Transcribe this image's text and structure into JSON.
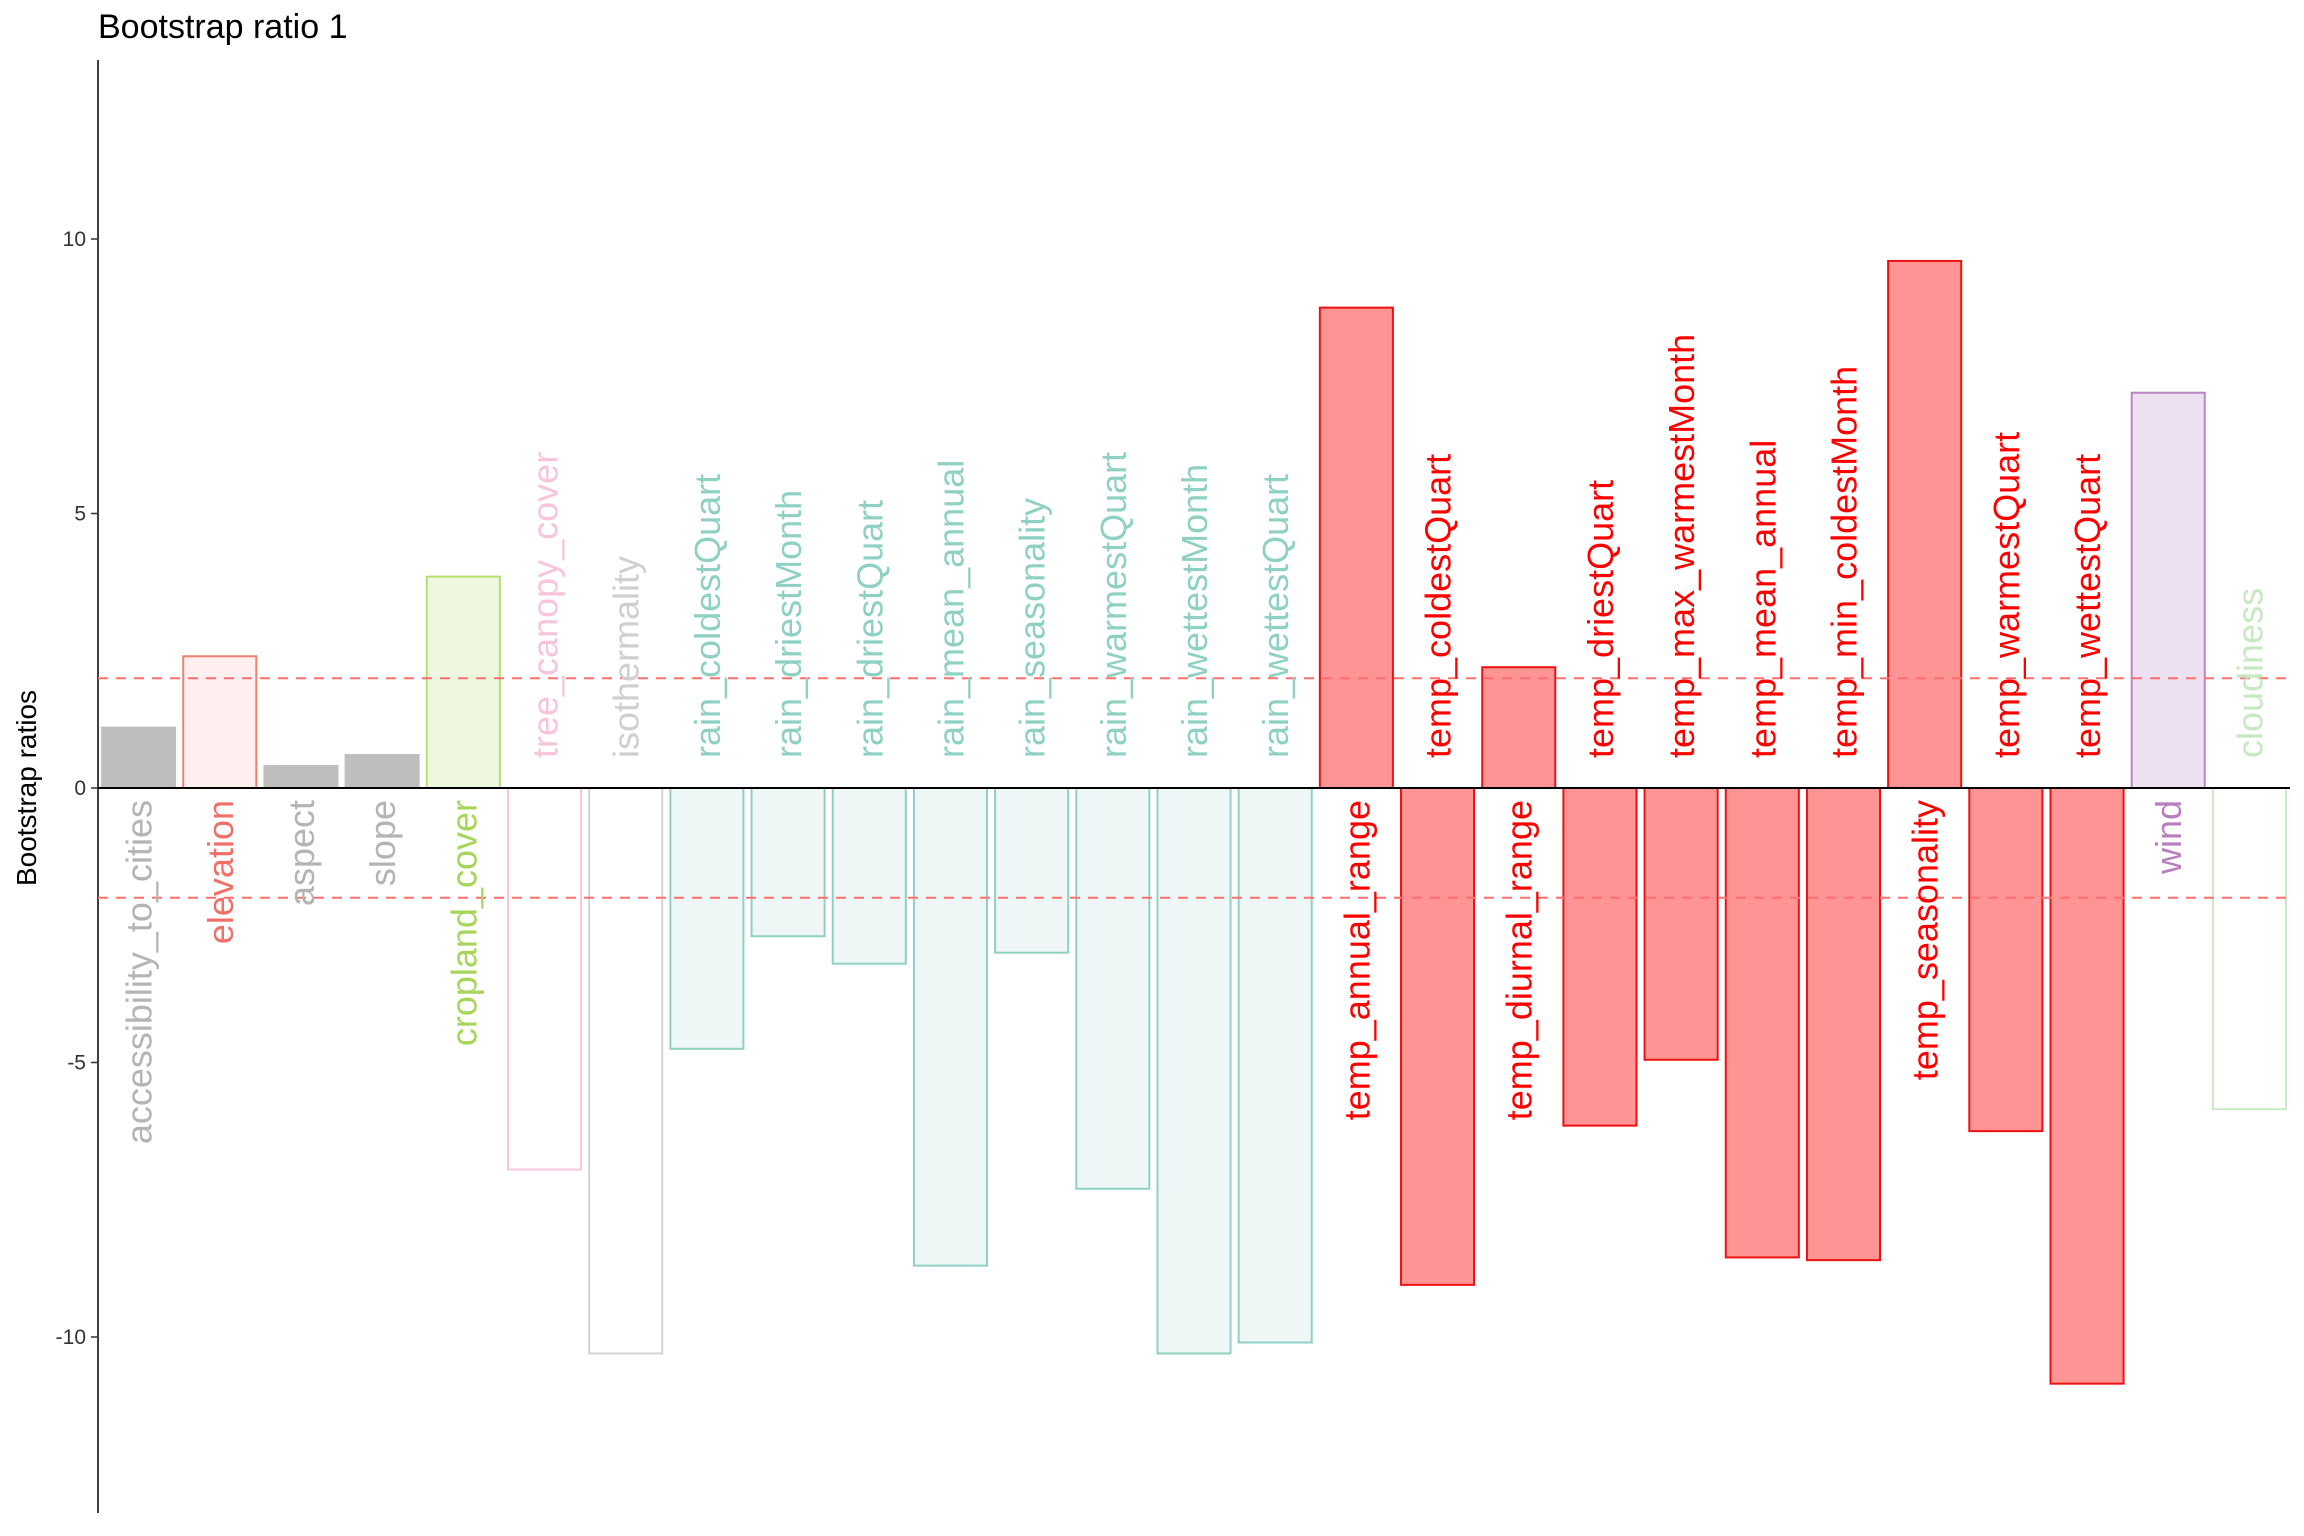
{
  "chart_data": {
    "type": "bar",
    "title": "Bootstrap ratio 1",
    "ylabel": "Bootstrap ratios",
    "xlabel": "",
    "ylim": [
      -13.2,
      13.2
    ],
    "yticks": [
      10,
      5,
      0,
      -5,
      -10
    ],
    "ytick_labels": [
      "10",
      "5",
      "0",
      "-5",
      "-10"
    ],
    "threshold": 2,
    "grid": false,
    "categories": [
      "accessibility_to_cities",
      "elevation",
      "aspect",
      "slope",
      "cropland_cover",
      "tree_canopy_cover",
      "isothermality",
      "rain_coldestQuart",
      "rain_driestMonth",
      "rain_driestQuart",
      "rain_mean_annual",
      "rain_seasonality",
      "rain_warmestQuart",
      "rain_wettestMonth",
      "rain_wettestQuart",
      "temp_annual_range",
      "temp_coldestQuart",
      "temp_diurnal_range",
      "temp_driestQuart",
      "temp_max_warmestMonth",
      "temp_mean_annual",
      "temp_min_coldestMonth",
      "temp_seasonality",
      "temp_warmestQuart",
      "temp_wettestQuart",
      "wind",
      "cloudiness"
    ],
    "values": [
      1.1,
      2.4,
      0.4,
      0.6,
      3.85,
      -6.95,
      -10.3,
      -4.75,
      -2.7,
      -3.2,
      -8.7,
      -3.0,
      -7.3,
      -10.3,
      -10.1,
      8.75,
      -9.05,
      2.2,
      -6.15,
      -4.95,
      -8.55,
      -8.6,
      9.6,
      -6.25,
      -10.85,
      7.2,
      -5.85
    ],
    "fill_colors": [
      "#bebebe",
      "#fff0ef",
      "#bebebe",
      "#bebebe",
      "#eef8e0",
      "#ffffff",
      "#ffffff",
      "#eef7f5",
      "#eef7f5",
      "#eef7f5",
      "#eef7f5",
      "#eef7f5",
      "#eef7f5",
      "#eef7f5",
      "#eef7f5",
      "#ff9494",
      "#ff9494",
      "#ff9494",
      "#ff9494",
      "#ff9494",
      "#ff9494",
      "#ff9494",
      "#ff9494",
      "#ff9494",
      "#ff9494",
      "#ede0f0",
      "#ffffff"
    ],
    "stroke_colors": [
      "#bebebe",
      "#f08070",
      "#bebebe",
      "#bebebe",
      "#b5df6e",
      "#f9c6db",
      "#d4d4d4",
      "#8ed1c3",
      "#8ed1c3",
      "#8ed1c3",
      "#8ed1c3",
      "#8ed1c3",
      "#8ed1c3",
      "#8ed1c3",
      "#8ed1c3",
      "#ee1111",
      "#ee1111",
      "#ee1111",
      "#ee1111",
      "#ee1111",
      "#ee1111",
      "#ee1111",
      "#ee1111",
      "#ee1111",
      "#ee1111",
      "#b985c0",
      "#c9e8c4"
    ],
    "label_colors": [
      "#b4b4b4",
      "#f07068",
      "#b4b4b4",
      "#b4b4b4",
      "#a5d65a",
      "#f7c4da",
      "#cfcfcf",
      "#8ed1c3",
      "#8ed1c3",
      "#8ed1c3",
      "#8ed1c3",
      "#8ed1c3",
      "#8ed1c3",
      "#8ed1c3",
      "#8ed1c3",
      "#ff0000",
      "#ff0000",
      "#ff0000",
      "#ff0000",
      "#ff0000",
      "#ff0000",
      "#ff0000",
      "#ff0000",
      "#ff0000",
      "#ff0000",
      "#b77fbe",
      "#c8e8c3"
    ],
    "colors": {
      "threshold_line": "#ff6e6e",
      "axis": "#000000",
      "tick_text": "#333333"
    }
  }
}
